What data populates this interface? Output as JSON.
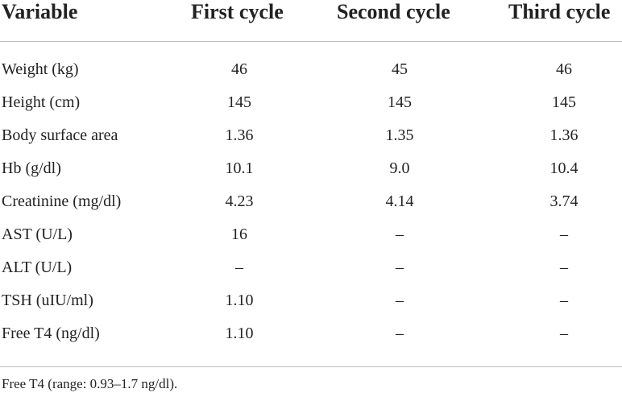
{
  "table": {
    "headers": [
      "Variable",
      "First cycle",
      "Second cycle",
      "Third cycle"
    ],
    "rows": [
      [
        "Weight (kg)",
        "46",
        "45",
        "46"
      ],
      [
        "Height (cm)",
        "145",
        "145",
        "145"
      ],
      [
        "Body surface area",
        "1.36",
        "1.35",
        "1.36"
      ],
      [
        "Hb (g/dl)",
        "10.1",
        "9.0",
        "10.4"
      ],
      [
        "Creatinine (mg/dl)",
        "4.23",
        "4.14",
        "3.74"
      ],
      [
        "AST (U/L)",
        "16",
        "–",
        "–"
      ],
      [
        "ALT (U/L)",
        "–",
        "–",
        "–"
      ],
      [
        "TSH (uIU/ml)",
        "1.10",
        "–",
        "–"
      ],
      [
        "Free T4 (ng/dl)",
        "1.10",
        "–",
        "–"
      ]
    ]
  },
  "footnote": "Free T4 (range: 0.93–1.7 ng/dl)."
}
